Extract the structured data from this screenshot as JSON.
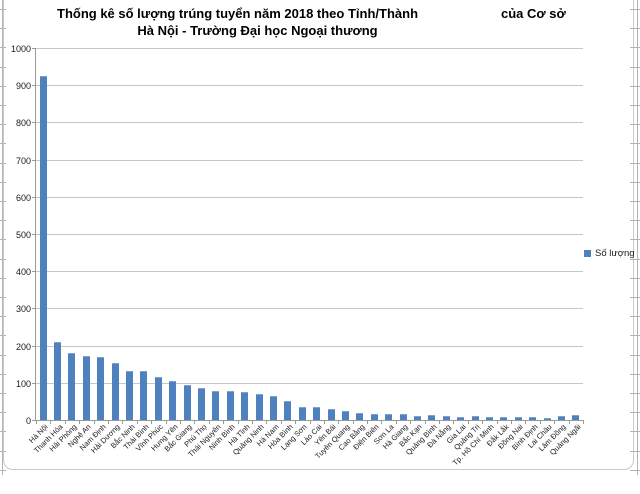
{
  "title": {
    "part1": "Thống kê số lượng trúng tuyển năm 2018 theo Tỉnh/Thành",
    "part2": "của Cơ sở",
    "line2": "Hà Nội - Trường Đại học Ngoại thương"
  },
  "legend": {
    "label": "Số lượng"
  },
  "colors": {
    "bar": "#4e81bd",
    "bar_top": "#7da2cf",
    "gridline": "#c7c7c7",
    "axis": "#9a9a9a"
  },
  "chart_data": {
    "type": "bar",
    "title": "Thống kê số lượng trúng tuyển năm 2018 theo Tỉnh/Thành của Cơ sở Hà Nội - Trường Đại học Ngoại thương",
    "series_name": "Số lượng",
    "categories": [
      "Hà Nội",
      "Thanh Hóa",
      "Hải Phòng",
      "Nghệ An",
      "Nam Định",
      "Hải Dương",
      "Bắc Ninh",
      "Thái Bình",
      "Vĩnh Phúc",
      "Hưng Yên",
      "Bắc Giang",
      "Phú Thọ",
      "Thái Nguyên",
      "Ninh Bình",
      "Hà Tĩnh",
      "Quảng Ninh",
      "Hà Nam",
      "Hòa Bình",
      "Lạng Sơn",
      "Lào Cai",
      "Yên Bái",
      "Tuyên Quang",
      "Cao Bằng",
      "Điện Biên",
      "Sơn La",
      "Hà Giang",
      "Bắc Kạn",
      "Quảng Bình",
      "Đà Nẵng",
      "Gia Lai",
      "Quảng Trị",
      "Tp. Hồ Chí Minh",
      "Đắk Lắk",
      "Đồng Nai",
      "Bình Định",
      "Lai Châu",
      "Lâm Đồng",
      "Quảng Ngãi"
    ],
    "values": [
      925,
      210,
      181,
      172,
      169,
      152,
      133,
      132,
      115,
      105,
      93,
      85,
      79,
      77,
      76,
      70,
      64,
      52,
      36,
      36,
      29,
      25,
      18,
      16,
      16,
      15,
      12,
      13,
      11,
      9,
      10,
      9,
      9,
      8,
      8,
      6,
      10,
      13
    ],
    "xlabel": "",
    "ylabel": "",
    "ylim": [
      0,
      1000
    ],
    "ytick_step": 100,
    "grid": true,
    "legend_position": "right",
    "bar_color": "#4e81bd"
  }
}
